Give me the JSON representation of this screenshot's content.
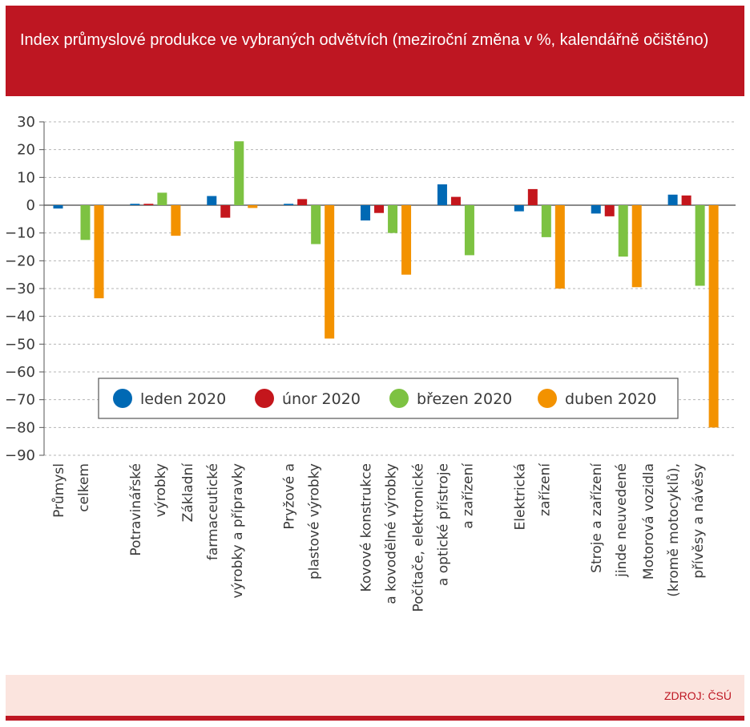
{
  "header": {
    "title": "Index průmyslové produkce ve vybraných odvětvích (meziroční změna v %, kalendářně očištěno)"
  },
  "footer": {
    "source": "ZDROJ: ČSÚ"
  },
  "chart_data": {
    "type": "bar",
    "title": "Index průmyslové produkce ve vybraných odvětvích (meziroční změna v %, kalendářně očištěno)",
    "categories": [
      "Průmysl celkem",
      "Potravinářské výrobky",
      "Základní farmaceutické výrobky a přípravky",
      "Pryžové a plastové výrobky",
      "Kovové konstrukce a kovodělné výrobky",
      "Počítače, elektronické a optické přístroje a zařízení",
      "Elektrická zařízení",
      "Stroje a zařízení jinde neuvedené",
      "Motorová vozidla (kromě motocyklů), přívěsy a návěsy"
    ],
    "category_lines": [
      [
        "Průmysl",
        "celkem"
      ],
      [
        "Potravinářské",
        "výrobky"
      ],
      [
        "Základní",
        "farmaceutické",
        "výrobky a přípravky"
      ],
      [
        "Pryžové a",
        "plastové výrobky"
      ],
      [
        "Kovové konstrukce",
        "a kovodělné výrobky"
      ],
      [
        "Počítače, elektronické",
        "a optické přístroje",
        "a zařízení"
      ],
      [
        "Elektrická",
        "zařízení"
      ],
      [
        "Stroje a zařízení",
        "jinde neuvedené"
      ],
      [
        "Motorová vozidla",
        "(kromě motocyklů),",
        "přívěsy a návěsy"
      ]
    ],
    "series": [
      {
        "name": "leden 2020",
        "color": "#0069b4",
        "values": [
          -1.2,
          0.5,
          3.3,
          0.5,
          -5.5,
          7.5,
          -2.2,
          -3.0,
          3.8
        ]
      },
      {
        "name": "únor 2020",
        "color": "#c4161c",
        "values": [
          0.0,
          0.5,
          -4.5,
          2.2,
          -2.8,
          3.0,
          5.8,
          -4.0,
          3.5
        ]
      },
      {
        "name": "březen 2020",
        "color": "#7dc242",
        "values": [
          -12.5,
          4.5,
          23.0,
          -14.0,
          -10.0,
          -18.0,
          -11.5,
          -18.5,
          -29.0
        ]
      },
      {
        "name": "duben 2020",
        "color": "#f39200",
        "values": [
          -33.5,
          -11.0,
          -1.0,
          -48.0,
          -25.0,
          0.0,
          -30.0,
          -29.5,
          -80.0
        ]
      }
    ],
    "yticks": [
      "30",
      "20",
      "10",
      "0",
      "−10",
      "−20",
      "−30",
      "−40",
      "−50",
      "−60",
      "−70",
      "−80",
      "−90"
    ],
    "ylim": [
      -90,
      30
    ],
    "grid": true,
    "legend_position": "bottom-center inside plot"
  }
}
